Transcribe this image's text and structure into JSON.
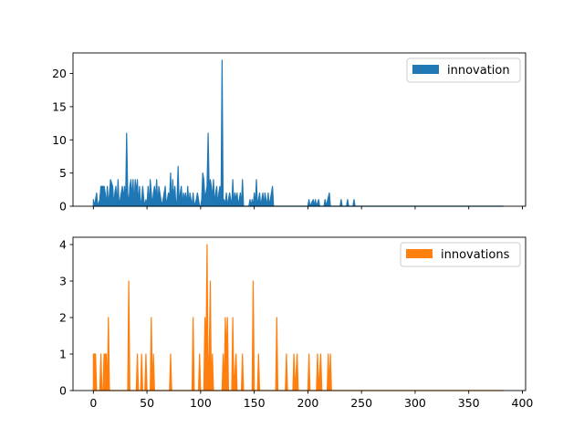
{
  "chart_data": [
    {
      "type": "area",
      "xlim": [
        -19,
        403
      ],
      "ylim": [
        0,
        23.1
      ],
      "xticks": [
        0,
        50,
        100,
        150,
        200,
        250,
        300,
        350,
        400
      ],
      "xtick_labels_shown": false,
      "yticks": [
        0,
        5,
        10,
        15,
        20
      ],
      "ytick_labels": [
        "0",
        "5",
        "10",
        "15",
        "20"
      ],
      "legend_position": "upper right",
      "series": [
        {
          "name": "innovation",
          "color": "#1f77b4",
          "points": [
            [
              0,
              0
            ],
            [
              0,
              1
            ],
            [
              1,
              0
            ],
            [
              3,
              2
            ],
            [
              4,
              0
            ],
            [
              6,
              1
            ],
            [
              7,
              3
            ],
            [
              10,
              3
            ],
            [
              11,
              2
            ],
            [
              12,
              0
            ],
            [
              13,
              3
            ],
            [
              14,
              0
            ],
            [
              15,
              2
            ],
            [
              16,
              4
            ],
            [
              18,
              3
            ],
            [
              19,
              0
            ],
            [
              20,
              2
            ],
            [
              21,
              3
            ],
            [
              22,
              0
            ],
            [
              23,
              4
            ],
            [
              24,
              0
            ],
            [
              26,
              2
            ],
            [
              27,
              3
            ],
            [
              28,
              1
            ],
            [
              29,
              3
            ],
            [
              30,
              0
            ],
            [
              31,
              11
            ],
            [
              32,
              2
            ],
            [
              33,
              0
            ],
            [
              34,
              3
            ],
            [
              35,
              4
            ],
            [
              36,
              1
            ],
            [
              37,
              4
            ],
            [
              38,
              0
            ],
            [
              39,
              4
            ],
            [
              40,
              2
            ],
            [
              41,
              4
            ],
            [
              42,
              0
            ],
            [
              43,
              3
            ],
            [
              44,
              0
            ],
            [
              45,
              1
            ],
            [
              46,
              3
            ],
            [
              47,
              1
            ],
            [
              48,
              0
            ],
            [
              49,
              1
            ],
            [
              50,
              0
            ],
            [
              51,
              3
            ],
            [
              52,
              0
            ],
            [
              53,
              4
            ],
            [
              54,
              2
            ],
            [
              55,
              0
            ],
            [
              56,
              2
            ],
            [
              57,
              3
            ],
            [
              58,
              1
            ],
            [
              59,
              4
            ],
            [
              60,
              0
            ],
            [
              61,
              3
            ],
            [
              62,
              2
            ],
            [
              63,
              1
            ],
            [
              64,
              0
            ],
            [
              65,
              1
            ],
            [
              66,
              2
            ],
            [
              67,
              3
            ],
            [
              68,
              0
            ],
            [
              70,
              2
            ],
            [
              71,
              1
            ],
            [
              72,
              5
            ],
            [
              73,
              0
            ],
            [
              74,
              4
            ],
            [
              75,
              1
            ],
            [
              76,
              3
            ],
            [
              77,
              0
            ],
            [
              78,
              1
            ],
            [
              79,
              6
            ],
            [
              80,
              0
            ],
            [
              81,
              2
            ],
            [
              82,
              3
            ],
            [
              83,
              0
            ],
            [
              84,
              2
            ],
            [
              85,
              1
            ],
            [
              86,
              2
            ],
            [
              87,
              0
            ],
            [
              88,
              3
            ],
            [
              89,
              0
            ],
            [
              90,
              2
            ],
            [
              91,
              1
            ],
            [
              92,
              0
            ],
            [
              93,
              2
            ],
            [
              94,
              0
            ],
            [
              96,
              1
            ],
            [
              97,
              2
            ],
            [
              98,
              1
            ],
            [
              99,
              0
            ],
            [
              100,
              0
            ],
            [
              101,
              1
            ],
            [
              102,
              5
            ],
            [
              103,
              4
            ],
            [
              104,
              1
            ],
            [
              105,
              2
            ],
            [
              106,
              3
            ],
            [
              107,
              11
            ],
            [
              108,
              2
            ],
            [
              109,
              4
            ],
            [
              110,
              3
            ],
            [
              111,
              1
            ],
            [
              112,
              4
            ],
            [
              113,
              0
            ],
            [
              114,
              2
            ],
            [
              115,
              3
            ],
            [
              116,
              0
            ],
            [
              117,
              2
            ],
            [
              118,
              3
            ],
            [
              119,
              0
            ],
            [
              120,
              22
            ],
            [
              121,
              0
            ],
            [
              122,
              1
            ],
            [
              123,
              0
            ],
            [
              124,
              2
            ],
            [
              125,
              0
            ],
            [
              126,
              1
            ],
            [
              127,
              2
            ],
            [
              128,
              1
            ],
            [
              129,
              0
            ],
            [
              130,
              4
            ],
            [
              131,
              0
            ],
            [
              132,
              2
            ],
            [
              133,
              1
            ],
            [
              134,
              2
            ],
            [
              135,
              0
            ],
            [
              137,
              2
            ],
            [
              138,
              0
            ],
            [
              139,
              4
            ],
            [
              140,
              0
            ],
            [
              145,
              0
            ],
            [
              146,
              1
            ],
            [
              147,
              0
            ],
            [
              148,
              1
            ],
            [
              149,
              0
            ],
            [
              150,
              2
            ],
            [
              151,
              0
            ],
            [
              152,
              4
            ],
            [
              153,
              0
            ],
            [
              154,
              1
            ],
            [
              155,
              2
            ],
            [
              156,
              0
            ],
            [
              157,
              1
            ],
            [
              158,
              2
            ],
            [
              159,
              0
            ],
            [
              160,
              2
            ],
            [
              161,
              1
            ],
            [
              162,
              0
            ],
            [
              163,
              2
            ],
            [
              164,
              0
            ],
            [
              165,
              1
            ],
            [
              166,
              2
            ],
            [
              167,
              3
            ],
            [
              168,
              0
            ],
            [
              200,
              0
            ],
            [
              201,
              1
            ],
            [
              202,
              0
            ],
            [
              205,
              1
            ],
            [
              206,
              0
            ],
            [
              207,
              1
            ],
            [
              208,
              0
            ],
            [
              210,
              1
            ],
            [
              211,
              0
            ],
            [
              215,
              0
            ],
            [
              216,
              1
            ],
            [
              217,
              0
            ],
            [
              220,
              2
            ],
            [
              221,
              0
            ],
            [
              230,
              0
            ],
            [
              231,
              1
            ],
            [
              232,
              0
            ],
            [
              236,
              0
            ],
            [
              237,
              1
            ],
            [
              238,
              0
            ],
            [
              242,
              0
            ],
            [
              243,
              1
            ],
            [
              244,
              0
            ],
            [
              382,
              0
            ]
          ]
        }
      ]
    },
    {
      "type": "area",
      "xlim": [
        -19,
        403
      ],
      "ylim": [
        0,
        4.2
      ],
      "xticks": [
        0,
        50,
        100,
        150,
        200,
        250,
        300,
        350,
        400
      ],
      "xtick_labels": [
        "0",
        "50",
        "100",
        "150",
        "200",
        "250",
        "300",
        "350",
        "400"
      ],
      "yticks": [
        0,
        1,
        2,
        3,
        4
      ],
      "ytick_labels": [
        "0",
        "1",
        "2",
        "3",
        "4"
      ],
      "legend_position": "upper right",
      "series": [
        {
          "name": "innovations",
          "color": "#ff7f0e",
          "points": [
            [
              0,
              0
            ],
            [
              0,
              1
            ],
            [
              2,
              1
            ],
            [
              3,
              0
            ],
            [
              6,
              0
            ],
            [
              7,
              1
            ],
            [
              8,
              0
            ],
            [
              9,
              0
            ],
            [
              10,
              1
            ],
            [
              12,
              1
            ],
            [
              13,
              0
            ],
            [
              14,
              2
            ],
            [
              15,
              0
            ],
            [
              32,
              0
            ],
            [
              33,
              3
            ],
            [
              34,
              0
            ],
            [
              40,
              0
            ],
            [
              41,
              1
            ],
            [
              42,
              0
            ],
            [
              44,
              0
            ],
            [
              45,
              1
            ],
            [
              46,
              0
            ],
            [
              48,
              0
            ],
            [
              49,
              1
            ],
            [
              50,
              0
            ],
            [
              53,
              0
            ],
            [
              54,
              2
            ],
            [
              55,
              0
            ],
            [
              56,
              1
            ],
            [
              57,
              0
            ],
            [
              71,
              0
            ],
            [
              72,
              1
            ],
            [
              73,
              0
            ],
            [
              92,
              0
            ],
            [
              93,
              2
            ],
            [
              94,
              0
            ],
            [
              98,
              0
            ],
            [
              99,
              1
            ],
            [
              100,
              0
            ],
            [
              103,
              0
            ],
            [
              104,
              2
            ],
            [
              105,
              1
            ],
            [
              106,
              4
            ],
            [
              107,
              0
            ],
            [
              108,
              1
            ],
            [
              109,
              3
            ],
            [
              110,
              0
            ],
            [
              111,
              1
            ],
            [
              112,
              0
            ],
            [
              120,
              0
            ],
            [
              121,
              1
            ],
            [
              122,
              0
            ],
            [
              123,
              2
            ],
            [
              124,
              1
            ],
            [
              125,
              2
            ],
            [
              126,
              0
            ],
            [
              129,
              0
            ],
            [
              130,
              2
            ],
            [
              131,
              0
            ],
            [
              133,
              1
            ],
            [
              134,
              0
            ],
            [
              138,
              0
            ],
            [
              139,
              1
            ],
            [
              140,
              0
            ],
            [
              148,
              0
            ],
            [
              149,
              3
            ],
            [
              150,
              0
            ],
            [
              153,
              0
            ],
            [
              154,
              1
            ],
            [
              155,
              0
            ],
            [
              170,
              0
            ],
            [
              171,
              2
            ],
            [
              172,
              0
            ],
            [
              179,
              0
            ],
            [
              180,
              1
            ],
            [
              181,
              0
            ],
            [
              186,
              0
            ],
            [
              187,
              1
            ],
            [
              188,
              0
            ],
            [
              190,
              1
            ],
            [
              191,
              0
            ],
            [
              200,
              0
            ],
            [
              201,
              1
            ],
            [
              202,
              0
            ],
            [
              208,
              0
            ],
            [
              209,
              1
            ],
            [
              210,
              0
            ],
            [
              212,
              1
            ],
            [
              213,
              0
            ],
            [
              218,
              0
            ],
            [
              219,
              1
            ],
            [
              220,
              0
            ],
            [
              221,
              1
            ],
            [
              222,
              0
            ],
            [
              382,
              0
            ]
          ]
        }
      ]
    }
  ]
}
